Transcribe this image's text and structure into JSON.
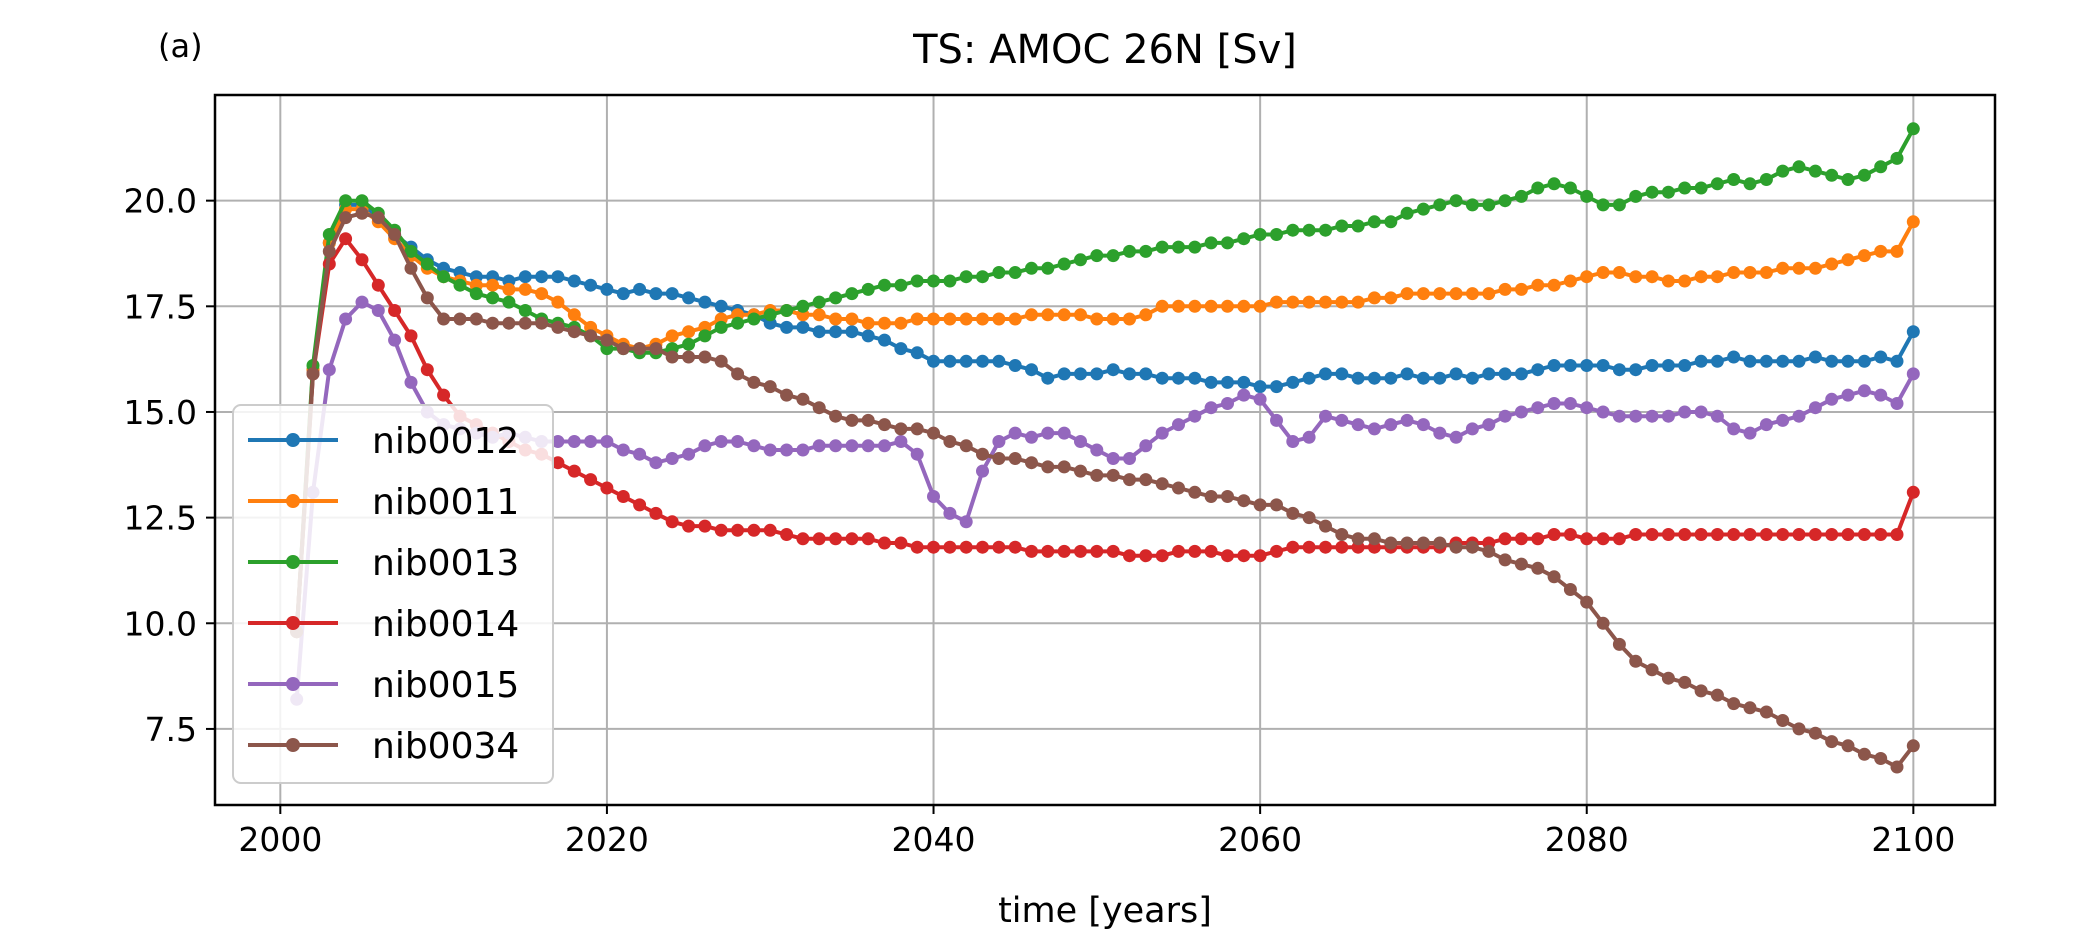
{
  "panel_label": "(a)",
  "chart_data": {
    "type": "line",
    "title": "TS: AMOC 26N [Sv]",
    "xlabel": "time [years]",
    "ylabel": "",
    "xlim": [
      1996,
      2105
    ],
    "ylim": [
      5.7,
      22.5
    ],
    "grid": true,
    "legend_position": "lower-left",
    "marker": "circle",
    "x_ticks": [
      2000,
      2020,
      2040,
      2060,
      2080,
      2100
    ],
    "x_tick_labels": [
      "2000",
      "2020",
      "2040",
      "2060",
      "2080",
      "2100"
    ],
    "y_ticks": [
      7.5,
      10.0,
      12.5,
      15.0,
      17.5,
      20.0
    ],
    "y_tick_labels": [
      "7.5",
      "10.0",
      "12.5",
      "15.0",
      "17.5",
      "20.0"
    ],
    "x": [
      2001,
      2002,
      2003,
      2004,
      2005,
      2006,
      2007,
      2008,
      2009,
      2010,
      2011,
      2012,
      2013,
      2014,
      2015,
      2016,
      2017,
      2018,
      2019,
      2020,
      2021,
      2022,
      2023,
      2024,
      2025,
      2026,
      2027,
      2028,
      2029,
      2030,
      2031,
      2032,
      2033,
      2034,
      2035,
      2036,
      2037,
      2038,
      2039,
      2040,
      2041,
      2042,
      2043,
      2044,
      2045,
      2046,
      2047,
      2048,
      2049,
      2050,
      2051,
      2052,
      2053,
      2054,
      2055,
      2056,
      2057,
      2058,
      2059,
      2060,
      2061,
      2062,
      2063,
      2064,
      2065,
      2066,
      2067,
      2068,
      2069,
      2070,
      2071,
      2072,
      2073,
      2074,
      2075,
      2076,
      2077,
      2078,
      2079,
      2080,
      2081,
      2082,
      2083,
      2084,
      2085,
      2086,
      2087,
      2088,
      2089,
      2090,
      2091,
      2092,
      2093,
      2094,
      2095,
      2096,
      2097,
      2098,
      2099,
      2100
    ],
    "series": [
      {
        "name": "nib0012",
        "color": "#1f77b4",
        "values": [
          9.8,
          16.0,
          19.0,
          19.9,
          19.9,
          19.6,
          19.2,
          18.9,
          18.6,
          18.4,
          18.3,
          18.2,
          18.2,
          18.1,
          18.2,
          18.2,
          18.2,
          18.1,
          18.0,
          17.9,
          17.8,
          17.9,
          17.8,
          17.8,
          17.7,
          17.6,
          17.5,
          17.4,
          17.3,
          17.1,
          17.0,
          17.0,
          16.9,
          16.9,
          16.9,
          16.8,
          16.7,
          16.5,
          16.4,
          16.2,
          16.2,
          16.2,
          16.2,
          16.2,
          16.1,
          16.0,
          15.8,
          15.9,
          15.9,
          15.9,
          16.0,
          15.9,
          15.9,
          15.8,
          15.8,
          15.8,
          15.7,
          15.7,
          15.7,
          15.6,
          15.6,
          15.7,
          15.8,
          15.9,
          15.9,
          15.8,
          15.8,
          15.8,
          15.9,
          15.8,
          15.8,
          15.9,
          15.8,
          15.9,
          15.9,
          15.9,
          16.0,
          16.1,
          16.1,
          16.1,
          16.1,
          16.0,
          16.0,
          16.1,
          16.1,
          16.1,
          16.2,
          16.2,
          16.3,
          16.2,
          16.2,
          16.2,
          16.2,
          16.3,
          16.2,
          16.2,
          16.2,
          16.3,
          16.2,
          16.9
        ]
      },
      {
        "name": "nib0011",
        "color": "#ff7f0e",
        "values": [
          9.8,
          16.0,
          19.0,
          19.8,
          19.8,
          19.5,
          19.1,
          18.7,
          18.4,
          18.2,
          18.1,
          18.0,
          18.0,
          17.9,
          17.9,
          17.8,
          17.6,
          17.3,
          17.0,
          16.8,
          16.6,
          16.5,
          16.6,
          16.8,
          16.9,
          17.0,
          17.2,
          17.3,
          17.3,
          17.4,
          17.4,
          17.3,
          17.3,
          17.2,
          17.2,
          17.1,
          17.1,
          17.1,
          17.2,
          17.2,
          17.2,
          17.2,
          17.2,
          17.2,
          17.2,
          17.3,
          17.3,
          17.3,
          17.3,
          17.2,
          17.2,
          17.2,
          17.3,
          17.5,
          17.5,
          17.5,
          17.5,
          17.5,
          17.5,
          17.5,
          17.6,
          17.6,
          17.6,
          17.6,
          17.6,
          17.6,
          17.7,
          17.7,
          17.8,
          17.8,
          17.8,
          17.8,
          17.8,
          17.8,
          17.9,
          17.9,
          18.0,
          18.0,
          18.1,
          18.2,
          18.3,
          18.3,
          18.2,
          18.2,
          18.1,
          18.1,
          18.2,
          18.2,
          18.3,
          18.3,
          18.3,
          18.4,
          18.4,
          18.4,
          18.5,
          18.6,
          18.7,
          18.8,
          18.8,
          19.5
        ]
      },
      {
        "name": "nib0013",
        "color": "#2ca02c",
        "values": [
          9.8,
          16.1,
          19.2,
          20.0,
          20.0,
          19.7,
          19.3,
          18.8,
          18.5,
          18.2,
          18.0,
          17.8,
          17.7,
          17.6,
          17.4,
          17.2,
          17.1,
          17.0,
          16.8,
          16.5,
          16.5,
          16.4,
          16.4,
          16.5,
          16.6,
          16.8,
          17.0,
          17.1,
          17.2,
          17.3,
          17.4,
          17.5,
          17.6,
          17.7,
          17.8,
          17.9,
          18.0,
          18.0,
          18.1,
          18.1,
          18.1,
          18.2,
          18.2,
          18.3,
          18.3,
          18.4,
          18.4,
          18.5,
          18.6,
          18.7,
          18.7,
          18.8,
          18.8,
          18.9,
          18.9,
          18.9,
          19.0,
          19.0,
          19.1,
          19.2,
          19.2,
          19.3,
          19.3,
          19.3,
          19.4,
          19.4,
          19.5,
          19.5,
          19.7,
          19.8,
          19.9,
          20.0,
          19.9,
          19.9,
          20.0,
          20.1,
          20.3,
          20.4,
          20.3,
          20.1,
          19.9,
          19.9,
          20.1,
          20.2,
          20.2,
          20.3,
          20.3,
          20.4,
          20.5,
          20.4,
          20.5,
          20.7,
          20.8,
          20.7,
          20.6,
          20.5,
          20.6,
          20.8,
          21.0,
          21.7
        ]
      },
      {
        "name": "nib0014",
        "color": "#d62728",
        "values": [
          9.8,
          15.9,
          18.5,
          19.1,
          18.6,
          18.0,
          17.4,
          16.8,
          16.0,
          15.4,
          14.9,
          14.7,
          14.5,
          14.3,
          14.1,
          14.0,
          13.8,
          13.6,
          13.4,
          13.2,
          13.0,
          12.8,
          12.6,
          12.4,
          12.3,
          12.3,
          12.2,
          12.2,
          12.2,
          12.2,
          12.1,
          12.0,
          12.0,
          12.0,
          12.0,
          12.0,
          11.9,
          11.9,
          11.8,
          11.8,
          11.8,
          11.8,
          11.8,
          11.8,
          11.8,
          11.7,
          11.7,
          11.7,
          11.7,
          11.7,
          11.7,
          11.6,
          11.6,
          11.6,
          11.7,
          11.7,
          11.7,
          11.6,
          11.6,
          11.6,
          11.7,
          11.8,
          11.8,
          11.8,
          11.8,
          11.8,
          11.8,
          11.8,
          11.8,
          11.8,
          11.8,
          11.9,
          11.9,
          11.9,
          12.0,
          12.0,
          12.0,
          12.1,
          12.1,
          12.0,
          12.0,
          12.0,
          12.1,
          12.1,
          12.1,
          12.1,
          12.1,
          12.1,
          12.1,
          12.1,
          12.1,
          12.1,
          12.1,
          12.1,
          12.1,
          12.1,
          12.1,
          12.1,
          12.1,
          13.1
        ]
      },
      {
        "name": "nib0015",
        "color": "#9467bd",
        "values": [
          8.2,
          13.1,
          16.0,
          17.2,
          17.6,
          17.4,
          16.7,
          15.7,
          15.0,
          14.7,
          14.6,
          14.5,
          14.4,
          14.5,
          14.4,
          14.3,
          14.3,
          14.3,
          14.3,
          14.3,
          14.1,
          14.0,
          13.8,
          13.9,
          14.0,
          14.2,
          14.3,
          14.3,
          14.2,
          14.1,
          14.1,
          14.1,
          14.2,
          14.2,
          14.2,
          14.2,
          14.2,
          14.3,
          14.0,
          13.0,
          12.6,
          12.4,
          13.6,
          14.3,
          14.5,
          14.4,
          14.5,
          14.5,
          14.3,
          14.1,
          13.9,
          13.9,
          14.2,
          14.5,
          14.7,
          14.9,
          15.1,
          15.2,
          15.4,
          15.3,
          14.8,
          14.3,
          14.4,
          14.9,
          14.8,
          14.7,
          14.6,
          14.7,
          14.8,
          14.7,
          14.5,
          14.4,
          14.6,
          14.7,
          14.9,
          15.0,
          15.1,
          15.2,
          15.2,
          15.1,
          15.0,
          14.9,
          14.9,
          14.9,
          14.9,
          15.0,
          15.0,
          14.9,
          14.6,
          14.5,
          14.7,
          14.8,
          14.9,
          15.1,
          15.3,
          15.4,
          15.5,
          15.4,
          15.2,
          15.9
        ]
      },
      {
        "name": "nib0034",
        "color": "#8c564b",
        "values": [
          9.8,
          15.9,
          18.8,
          19.6,
          19.7,
          19.6,
          19.2,
          18.4,
          17.7,
          17.2,
          17.2,
          17.2,
          17.1,
          17.1,
          17.1,
          17.1,
          17.0,
          16.9,
          16.8,
          16.7,
          16.5,
          16.5,
          16.5,
          16.3,
          16.3,
          16.3,
          16.2,
          15.9,
          15.7,
          15.6,
          15.4,
          15.3,
          15.1,
          14.9,
          14.8,
          14.8,
          14.7,
          14.6,
          14.6,
          14.5,
          14.3,
          14.2,
          14.0,
          13.9,
          13.9,
          13.8,
          13.7,
          13.7,
          13.6,
          13.5,
          13.5,
          13.4,
          13.4,
          13.3,
          13.2,
          13.1,
          13.0,
          13.0,
          12.9,
          12.8,
          12.8,
          12.6,
          12.5,
          12.3,
          12.1,
          12.0,
          12.0,
          11.9,
          11.9,
          11.9,
          11.9,
          11.8,
          11.8,
          11.7,
          11.5,
          11.4,
          11.3,
          11.1,
          10.8,
          10.5,
          10.0,
          9.5,
          9.1,
          8.9,
          8.7,
          8.6,
          8.4,
          8.3,
          8.1,
          8.0,
          7.9,
          7.7,
          7.5,
          7.4,
          7.2,
          7.1,
          6.9,
          6.8,
          6.6,
          7.1
        ]
      }
    ]
  }
}
